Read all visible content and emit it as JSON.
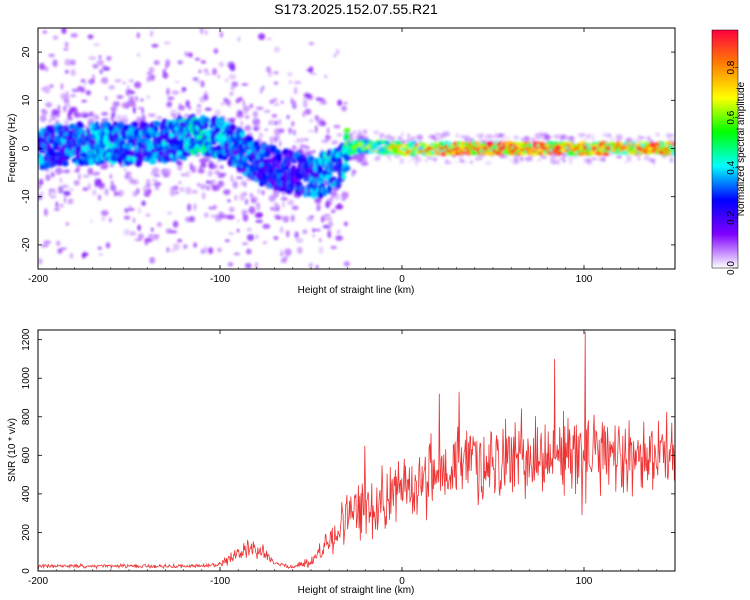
{
  "title": "S173.2025.152.07.55.R21",
  "chart_data": [
    {
      "type": "heatmap",
      "xlabel": "Height of straight line (km)",
      "ylabel": "Frequency (Hz)",
      "xlim": [
        -200,
        150
      ],
      "ylim": [
        -25,
        25
      ],
      "x_ticks": [
        -200,
        -100,
        0,
        100
      ],
      "y_ticks": [
        -20,
        -10,
        0,
        10,
        20
      ],
      "colorbar": {
        "label": "Normalized spectral amplitude",
        "range": [
          0,
          0.95
        ],
        "ticks": [
          "0.0",
          "0.2",
          "0.4",
          "0.6",
          "0.8"
        ],
        "tick_values": [
          0,
          0.2,
          0.4,
          0.6,
          0.8
        ],
        "colors": [
          "#ffffff",
          "#7f00ff",
          "#0000ff",
          "#00ffff",
          "#00ff00",
          "#ffff00",
          "#ff8000",
          "#ff0040"
        ]
      },
      "ridge": {
        "height_km": [
          -200,
          -180,
          -160,
          -140,
          -120,
          -110,
          -100,
          -90,
          -80,
          -70,
          -60,
          -50,
          -40,
          -35,
          -32,
          -30,
          -20,
          0,
          50,
          100,
          150
        ],
        "frequency_hz": [
          0,
          1,
          1,
          1,
          2,
          3,
          2,
          0,
          -3,
          -4,
          -5,
          -6,
          -5,
          -4,
          -2,
          0,
          0.5,
          0,
          0,
          0,
          0
        ],
        "peak_amplitude": [
          0.35,
          0.35,
          0.4,
          0.35,
          0.4,
          0.45,
          0.4,
          0.35,
          0.35,
          0.3,
          0.3,
          0.35,
          0.4,
          0.35,
          0.4,
          0.55,
          0.6,
          0.75,
          0.9,
          0.85,
          0.8
        ]
      }
    },
    {
      "type": "line",
      "xlabel": "Height of straight line (km)",
      "ylabel": "SNR (10 * v/v)",
      "xlim": [
        -200,
        150
      ],
      "ylim": [
        0,
        1250
      ],
      "x_ticks": [
        -200,
        -100,
        0,
        100
      ],
      "y_ticks": [
        0,
        200,
        400,
        600,
        800,
        1000,
        1200
      ],
      "color": "#ee3333",
      "envelope": {
        "height_km": [
          -200,
          -120,
          -100,
          -95,
          -85,
          -80,
          -75,
          -70,
          -60,
          -50,
          -40,
          -30,
          -20,
          -10,
          0,
          10,
          20,
          30,
          50,
          70,
          90,
          100,
          110,
          130,
          150
        ],
        "snr_mean": [
          25,
          25,
          30,
          60,
          110,
          115,
          90,
          40,
          20,
          50,
          150,
          280,
          330,
          380,
          420,
          470,
          510,
          550,
          580,
          590,
          600,
          600,
          590,
          600,
          620
        ],
        "snr_spread": [
          10,
          10,
          15,
          30,
          45,
          50,
          40,
          15,
          10,
          30,
          90,
          140,
          160,
          180,
          180,
          190,
          200,
          210,
          220,
          220,
          230,
          240,
          220,
          200,
          180
        ]
      },
      "spikes": [
        {
          "x": 100.3,
          "y": 1240
        },
        {
          "x": 83.5,
          "y": 1100
        },
        {
          "x": 20.4,
          "y": 920
        },
        {
          "x": 31.2,
          "y": 930
        },
        {
          "x": 98.6,
          "y": 290
        },
        {
          "x": -20.5,
          "y": 650
        }
      ]
    }
  ]
}
